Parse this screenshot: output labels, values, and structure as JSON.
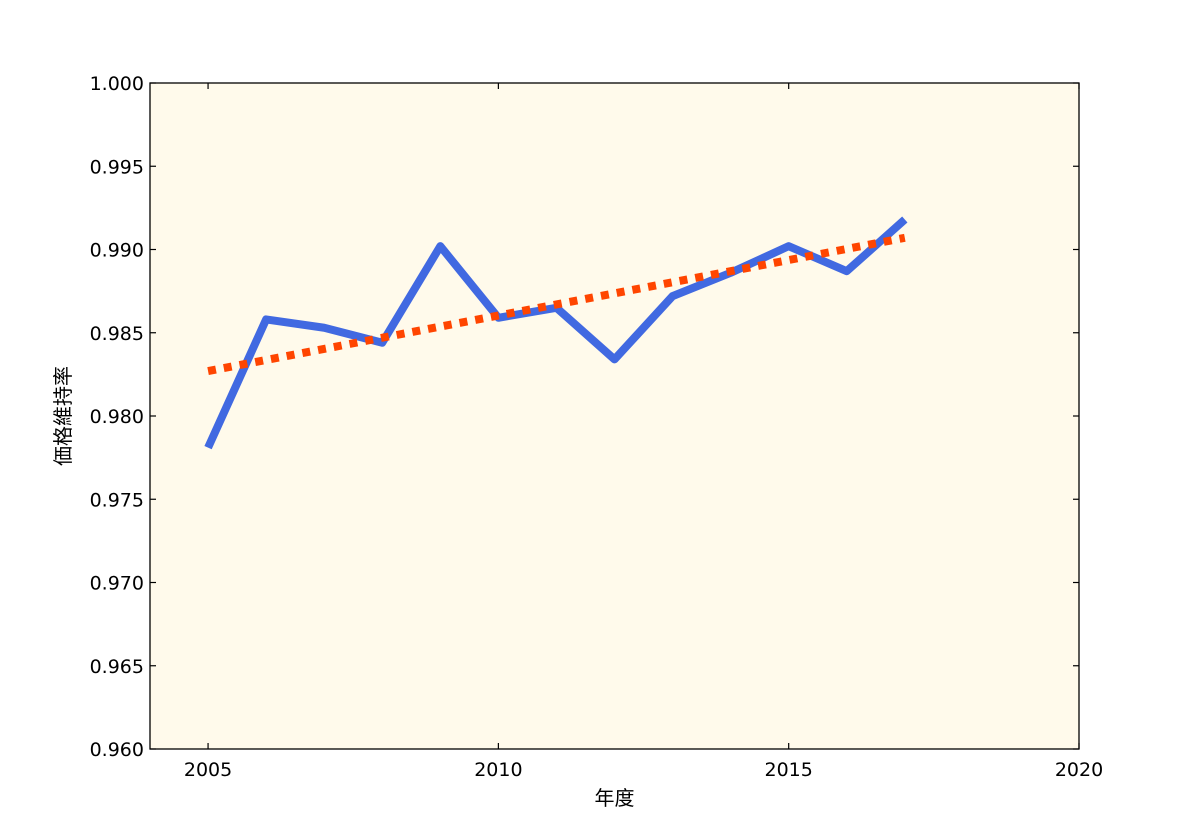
{
  "chart_data": {
    "type": "line",
    "title": "",
    "xlabel": "年度",
    "ylabel": "価格維持率",
    "xlim": [
      2004,
      2020
    ],
    "ylim": [
      0.96,
      1.0
    ],
    "xticks": [
      2005,
      2010,
      2015,
      2020
    ],
    "xtick_labels": [
      "2005",
      "2010",
      "2015",
      "2020"
    ],
    "yticks": [
      0.96,
      0.965,
      0.97,
      0.975,
      0.98,
      0.985,
      0.99,
      0.995,
      1.0
    ],
    "ytick_labels": [
      "0.960",
      "0.965",
      "0.970",
      "0.975",
      "0.980",
      "0.985",
      "0.990",
      "0.995",
      "1.000"
    ],
    "plot_background": "#fffaeb",
    "series": [
      {
        "style": "solid",
        "color": "#4169e1",
        "x": [
          2005,
          2006,
          2007,
          2008,
          2009,
          2010,
          2011,
          2012,
          2013,
          2014,
          2015,
          2016,
          2017
        ],
        "y": [
          0.9781,
          0.9858,
          0.9853,
          0.9844,
          0.9902,
          0.9859,
          0.9865,
          0.9834,
          0.9872,
          0.9886,
          0.9902,
          0.9887,
          0.9918
        ]
      },
      {
        "style": "dotted",
        "color": "#ff4500",
        "x": [
          2005,
          2017
        ],
        "y": [
          0.9827,
          0.9907
        ]
      }
    ],
    "grid": false,
    "legend": "none"
  }
}
